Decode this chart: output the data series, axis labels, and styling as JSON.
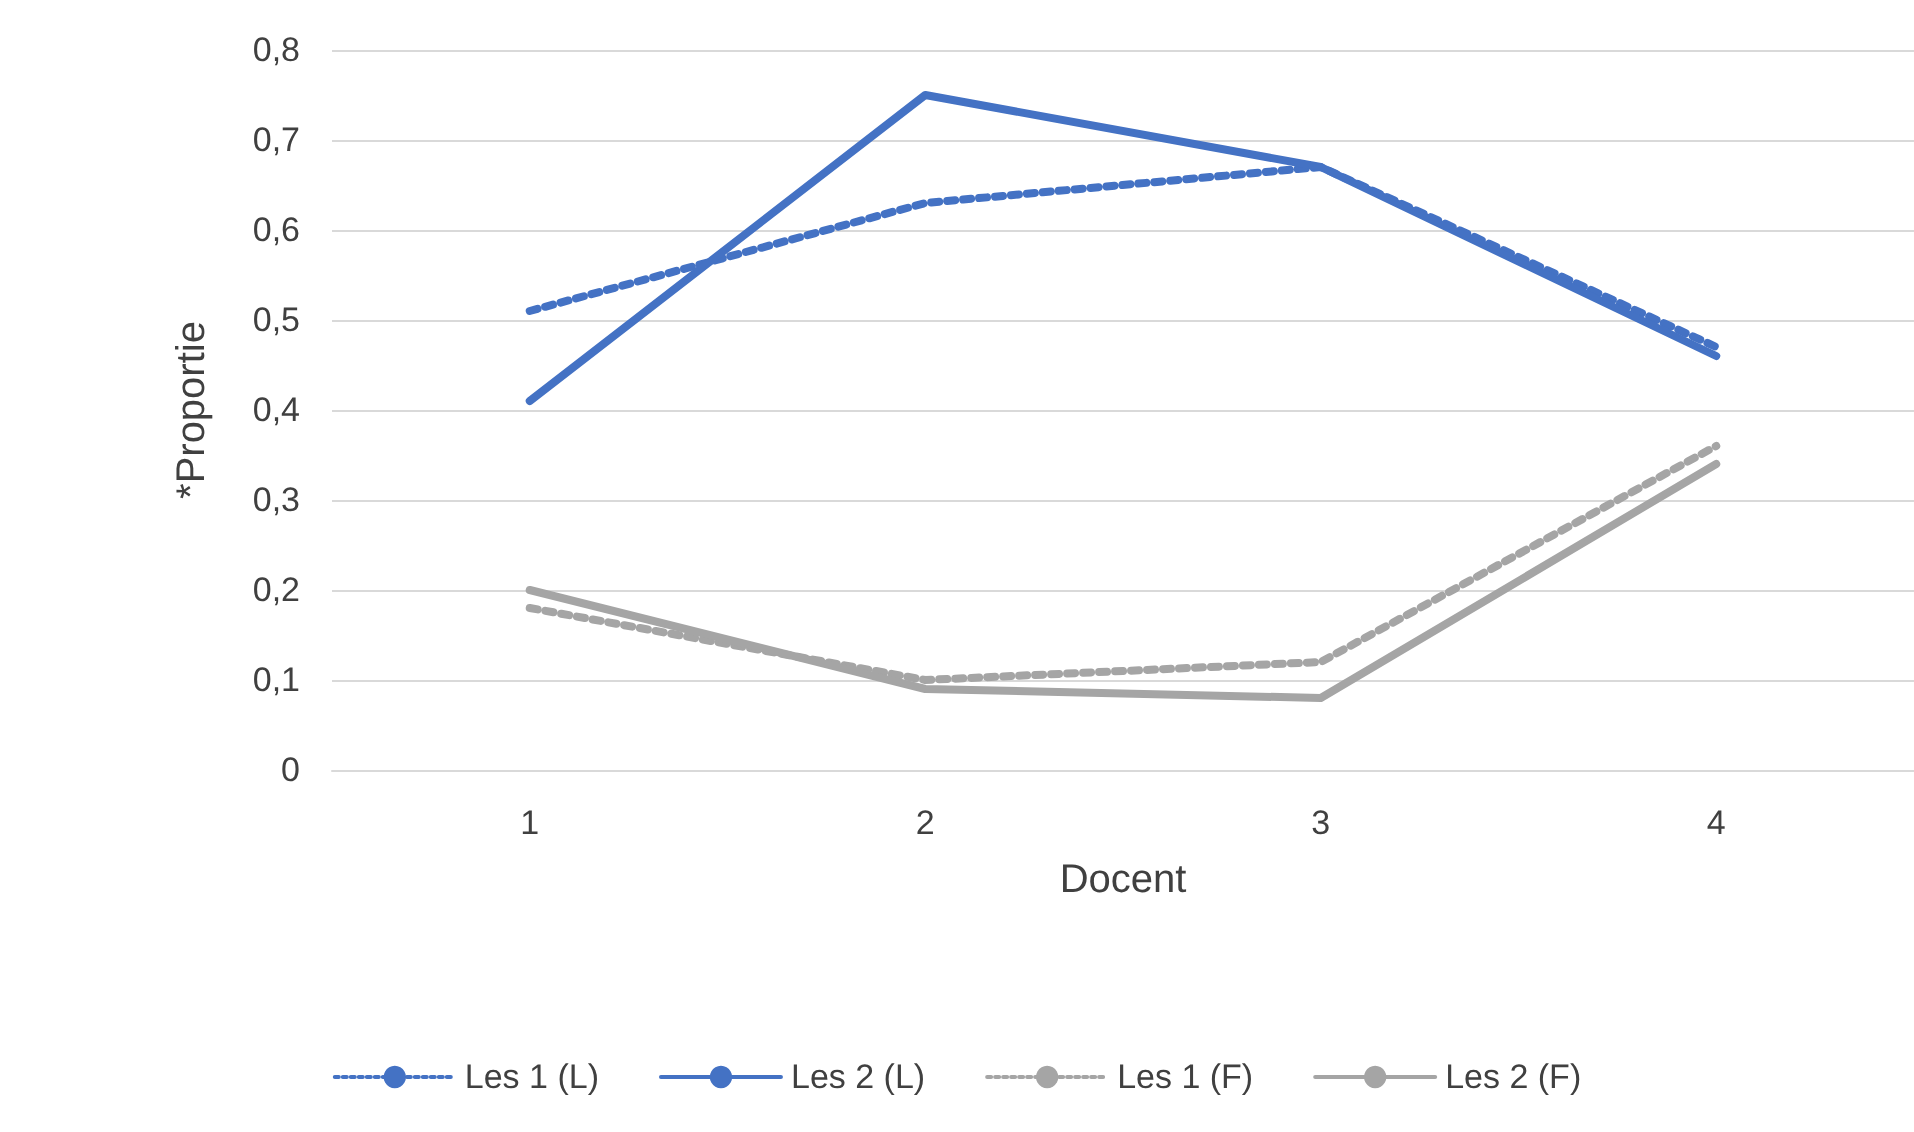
{
  "chart_data": {
    "type": "line",
    "xlabel": "Docent",
    "ylabel": "*Proportie",
    "categories": [
      "1",
      "2",
      "3",
      "4"
    ],
    "series": [
      {
        "name": "Les 1 (L)",
        "color": "#4472c4",
        "line_style": "dotted",
        "values": [
          0.51,
          0.63,
          0.67,
          0.47
        ]
      },
      {
        "name": "Les 2 (L)",
        "color": "#4472c4",
        "line_style": "solid",
        "values": [
          0.41,
          0.75,
          0.67,
          0.46
        ]
      },
      {
        "name": "Les 1 (F)",
        "color": "#a5a5a5",
        "line_style": "dotted",
        "values": [
          0.18,
          0.1,
          0.12,
          0.36
        ]
      },
      {
        "name": "Les 2 (F)",
        "color": "#a5a5a5",
        "line_style": "solid",
        "values": [
          0.2,
          0.09,
          0.08,
          0.34
        ]
      }
    ],
    "ylim": [
      0,
      0.8
    ],
    "yticks": [
      0,
      {
        "value": 0.1,
        "label": "0,1"
      },
      {
        "value": 0.2,
        "label": "0,2"
      },
      {
        "value": 0.3,
        "label": "0,3"
      },
      {
        "value": 0.4,
        "label": "0,4"
      },
      {
        "value": 0.5,
        "label": "0,5"
      },
      {
        "value": 0.6,
        "label": "0,6"
      },
      {
        "value": 0.7,
        "label": "0,7"
      },
      {
        "value": 0.8,
        "label": "0,8"
      }
    ],
    "grid": "y",
    "legend": "bottom",
    "marker": "none"
  }
}
